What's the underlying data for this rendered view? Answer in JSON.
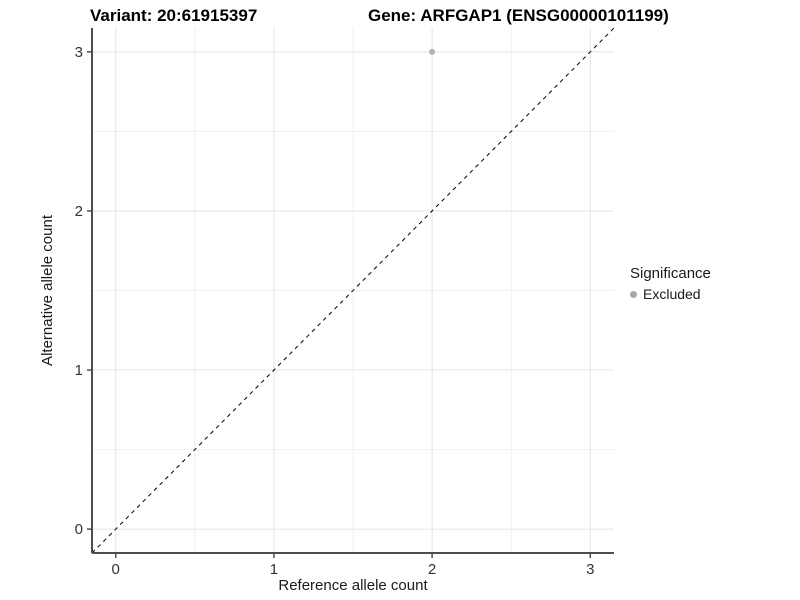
{
  "titles": {
    "left": "Variant: 20:61915397",
    "right": "Gene: ARFGAP1 (ENSG00000101199)"
  },
  "chart_data": {
    "type": "scatter",
    "title_left": "Variant: 20:61915397",
    "title_right": "Gene: ARFGAP1 (ENSG00000101199)",
    "xlabel": "Reference allele count",
    "ylabel": "Alternative allele count",
    "xlim": [
      -0.15,
      3.15
    ],
    "ylim": [
      -0.15,
      3.15
    ],
    "x_ticks": {
      "values": [
        0,
        1,
        2,
        3
      ],
      "labels": [
        "0",
        "1",
        "2",
        "3"
      ]
    },
    "y_ticks": {
      "values": [
        0,
        1,
        2,
        3
      ],
      "labels": [
        "0",
        "1",
        "2",
        "3"
      ]
    },
    "x_minor": [
      0.5,
      1.5,
      2.5
    ],
    "y_minor": [
      0.5,
      1.5,
      2.5
    ],
    "grid": true,
    "reference_line": {
      "type": "identity",
      "slope": 1,
      "intercept": 0,
      "style": "dashed",
      "color": "#000000"
    },
    "series": [
      {
        "name": "Excluded",
        "color": "#b3b3b3",
        "points": [
          {
            "x": 2,
            "y": 3
          }
        ]
      }
    ],
    "legend": {
      "position": "right",
      "title": "Significance",
      "items": [
        {
          "label": "Excluded",
          "color": "#a6a6a6"
        }
      ]
    },
    "style": {
      "background": "#ffffff",
      "grid_major_color": "#e4e4e4",
      "grid_minor_color": "#f0f0f0",
      "axis_line_color": "#4d4d4d",
      "tick_label_color": "#333333"
    }
  }
}
